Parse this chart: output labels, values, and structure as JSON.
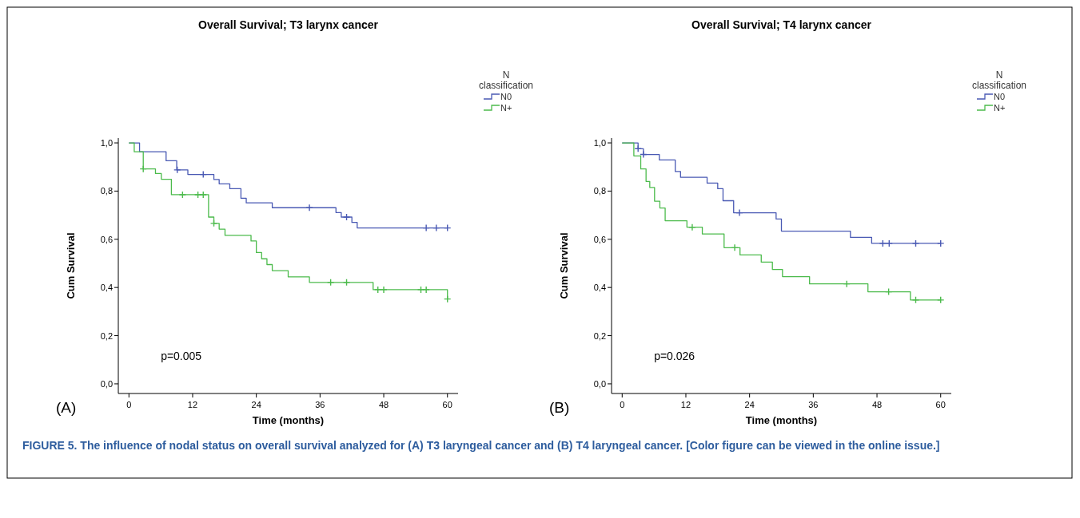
{
  "chart_data": [
    {
      "type": "step",
      "title": "Overall Survival; T3 larynx cancer",
      "xlabel": "Time (months)",
      "ylabel": "Cum Survival",
      "legend_title": "N classification",
      "legend": "top right",
      "annotations": [
        "p=0.005",
        "(A)",
        "FIGURE 5. The influence of nodal status on overall survival analyzed for (A) T3 laryngeal cancer and (B) T4 laryngeal cancer. [Color figure can be viewed in the online issue.]"
      ],
      "xlim": [
        -2,
        62
      ],
      "ylim": [
        -0.04,
        1.02
      ],
      "xticks": [
        0,
        12,
        24,
        36,
        48,
        60
      ],
      "yticks": [
        {
          "value": 0,
          "label": "0,0"
        },
        {
          "value": 0.2,
          "label": "0,2"
        },
        {
          "value": 0.4,
          "label": "0,4"
        },
        {
          "value": 0.6,
          "label": "0,6"
        },
        {
          "value": 0.8,
          "label": "0,8"
        },
        {
          "value": 1,
          "label": "1,0"
        }
      ],
      "series": [
        {
          "name": "N0",
          "color": "#4a5ab4",
          "x": [
            0,
            2,
            7,
            9,
            11.1,
            16,
            17,
            19,
            21.1,
            22.1,
            27,
            39,
            40,
            42,
            43,
            60
          ],
          "values": [
            1,
            0.963,
            0.926,
            0.888,
            0.869,
            0.848,
            0.83,
            0.81,
            0.77,
            0.751,
            0.731,
            0.711,
            0.692,
            0.67,
            0.647,
            0.647
          ]
        },
        {
          "name": "N+",
          "color": "#4cbb4c",
          "x": [
            0,
            1,
            2.7,
            5,
            6.1,
            8,
            15,
            16,
            17,
            18.1,
            23,
            24,
            25,
            26,
            27,
            30,
            34,
            46,
            60
          ],
          "values": [
            1,
            0.963,
            0.892,
            0.873,
            0.849,
            0.785,
            0.692,
            0.666,
            0.642,
            0.616,
            0.593,
            0.545,
            0.519,
            0.495,
            0.47,
            0.444,
            0.421,
            0.391,
            0.352
          ]
        },
        {
          "type": "scatter",
          "marker": "cross",
          "color": "#4a5ab4",
          "x": [
            9.1,
            14,
            34,
            41,
            56,
            57.9,
            60
          ],
          "values": [
            0.888,
            0.869,
            0.731,
            0.692,
            0.647,
            0.647,
            0.647
          ]
        },
        {
          "type": "scatter",
          "marker": "cross",
          "color": "#4cbb4c",
          "x": [
            2.7,
            10.1,
            13,
            14,
            16,
            38,
            41,
            46.9,
            48,
            55,
            56,
            60
          ],
          "values": [
            0.892,
            0.785,
            0.785,
            0.785,
            0.666,
            0.421,
            0.421,
            0.391,
            0.391,
            0.391,
            0.391,
            0.352
          ]
        }
      ]
    },
    {
      "type": "step",
      "title": "Overall Survival; T4 larynx cancer",
      "xlabel": "Time (months)",
      "ylabel": "Cum Survival",
      "legend_title": "N classification",
      "legend": "top right",
      "annotations": [
        "p=0.026",
        "(B)"
      ],
      "xlim": [
        -2,
        62
      ],
      "ylim": [
        -0.04,
        1.02
      ],
      "xticks": [
        0,
        12,
        24,
        36,
        48,
        60
      ],
      "yticks": [
        {
          "value": 0,
          "label": "0,0"
        },
        {
          "value": 0.2,
          "label": "0,2"
        },
        {
          "value": 0.4,
          "label": "0,4"
        },
        {
          "value": 0.6,
          "label": "0,6"
        },
        {
          "value": 0.8,
          "label": "0,8"
        },
        {
          "value": 1,
          "label": "1,0"
        }
      ],
      "series": [
        {
          "name": "N0",
          "color": "#4a5ab4",
          "x": [
            0,
            3,
            4,
            7,
            10,
            11,
            16,
            18,
            19,
            21,
            29,
            30,
            43,
            47,
            60
          ],
          "values": [
            1,
            0.976,
            0.952,
            0.929,
            0.881,
            0.857,
            0.833,
            0.81,
            0.76,
            0.71,
            0.684,
            0.634,
            0.608,
            0.583,
            0.583
          ]
        },
        {
          "name": "N+",
          "color": "#4cbb4c",
          "x": [
            0,
            2.2,
            3.5,
            4.5,
            5.2,
            6.1,
            7.1,
            8.1,
            12.2,
            15.1,
            19.2,
            22.2,
            26.2,
            28.3,
            30.2,
            35.3,
            46.3,
            54.3,
            60
          ],
          "values": [
            1,
            0.946,
            0.892,
            0.84,
            0.815,
            0.758,
            0.73,
            0.677,
            0.65,
            0.622,
            0.565,
            0.535,
            0.505,
            0.475,
            0.445,
            0.415,
            0.382,
            0.348,
            0.348
          ]
        },
        {
          "type": "scatter",
          "marker": "cross",
          "color": "#4a5ab4",
          "x": [
            3,
            4,
            22.1,
            49.1,
            50.3,
            55.3,
            60
          ],
          "values": [
            0.976,
            0.952,
            0.71,
            0.583,
            0.583,
            0.583,
            0.583
          ]
        },
        {
          "type": "scatter",
          "marker": "cross",
          "color": "#4cbb4c",
          "x": [
            13.2,
            21.2,
            42.3,
            50.2,
            55.3,
            60
          ],
          "values": [
            0.65,
            0.565,
            0.415,
            0.382,
            0.348,
            0.348
          ]
        }
      ]
    }
  ]
}
